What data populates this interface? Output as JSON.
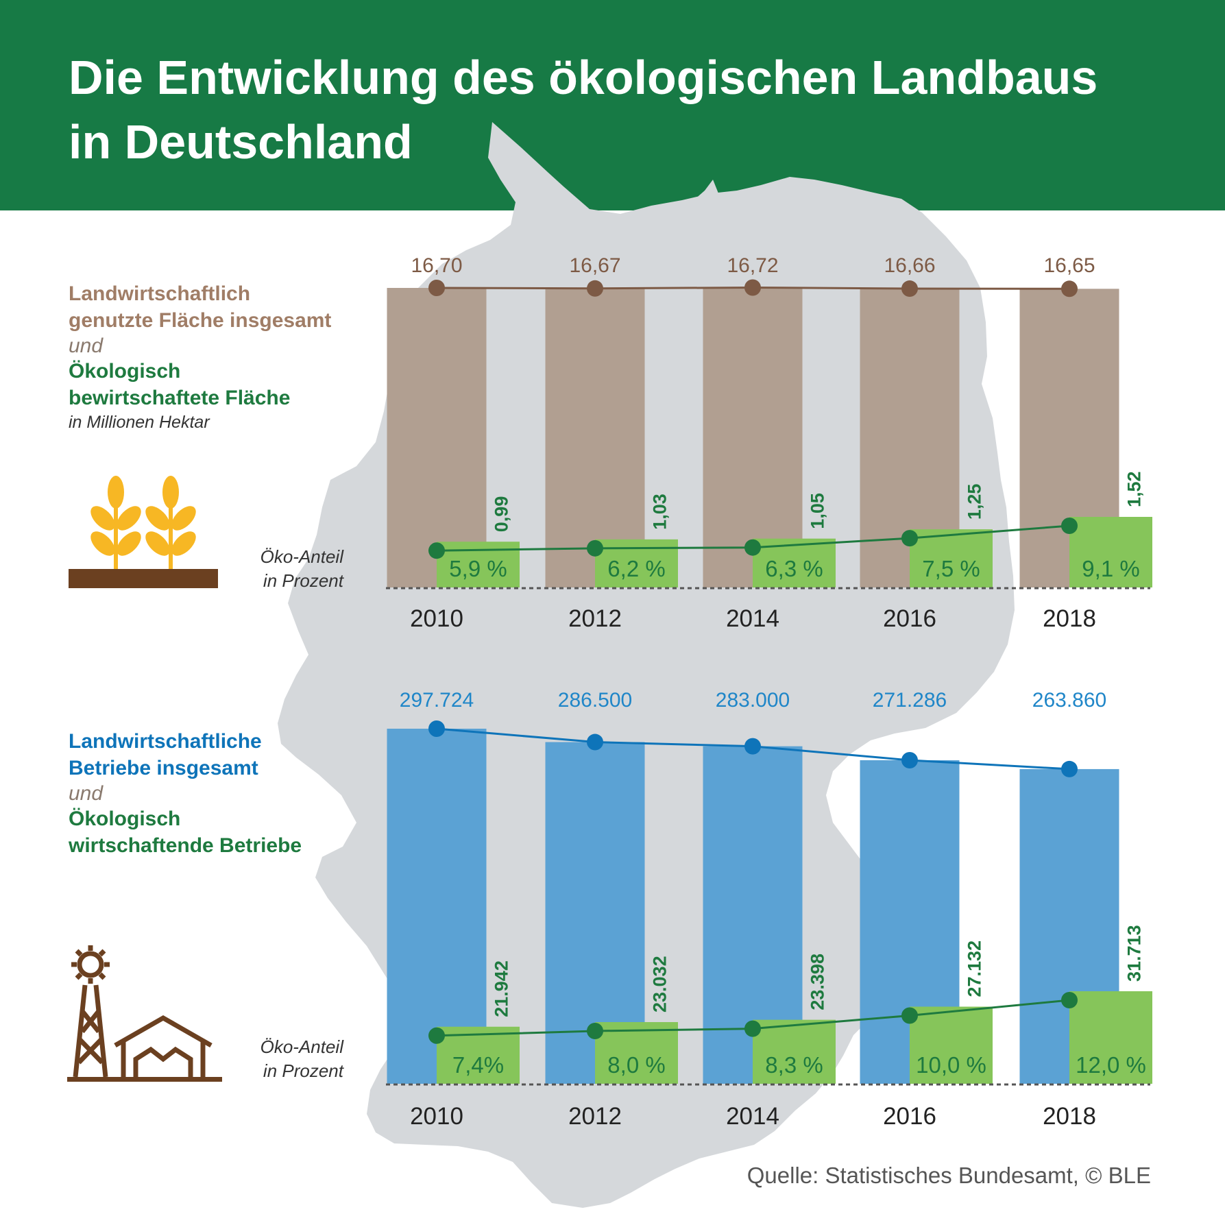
{
  "title": {
    "line1": "Die Entwicklung des ökologischen Landbaus",
    "line2": "in Deutschland"
  },
  "colors": {
    "header_green": "#177A45",
    "brown_bar": "#B19F91",
    "brown_line": "#7D5A45",
    "blue_bar": "#5BA2D4",
    "blue_line": "#0E74B9",
    "eco_green_bar": "#86C55A",
    "eco_green_line": "#1E7A3F",
    "map_gray": "#D5D8DB",
    "wheat": "#F7B724",
    "soil": "#6B4020"
  },
  "section1": {
    "label_line1": "Landwirtschaftlich",
    "label_line2": "genutzte Fläche insgesamt",
    "conjunction": "und",
    "eco_line1": "Ökologisch",
    "eco_line2": "bewirtschaftete Fläche",
    "unit": "in Millionen Hektar",
    "share_label_1": "Öko-Anteil",
    "share_label_2": "in Prozent",
    "icon": "wheat-icon"
  },
  "section2": {
    "label_line1": "Landwirtschaftliche",
    "label_line2": "Betriebe insgesamt",
    "conjunction": "und",
    "eco_line1": "Ökologisch",
    "eco_line2": "wirtschaftende Betriebe",
    "share_label_1": "Öko-Anteil",
    "share_label_2": "in Prozent",
    "icon": "windmill-farm-icon"
  },
  "source": "Quelle: Statistisches Bundesamt, © BLE",
  "chart_data": [
    {
      "type": "bar",
      "categories": [
        "2010",
        "2012",
        "2014",
        "2016",
        "2018"
      ],
      "ylim": [
        0,
        17
      ],
      "series": [
        {
          "name": "Landwirtschaftlich genutzte Fläche insgesamt",
          "values": [
            16.7,
            16.67,
            16.72,
            16.66,
            16.65
          ],
          "labels": [
            "16,70",
            "16,67",
            "16,72",
            "16,66",
            "16,65"
          ]
        },
        {
          "name": "Ökologisch bewirtschaftete Fläche",
          "values": [
            0.99,
            1.03,
            1.05,
            1.25,
            1.52
          ],
          "labels": [
            "0,99",
            "1,03",
            "1,05",
            "1,25",
            "1,52"
          ]
        }
      ],
      "share": {
        "name": "Öko-Anteil in Prozent",
        "values": [
          5.9,
          6.2,
          6.3,
          7.5,
          9.1
        ],
        "labels": [
          "5,9 %",
          "6,2 %",
          "6,3 %",
          "7,5 %",
          "9,1 %"
        ]
      }
    },
    {
      "type": "bar",
      "categories": [
        "2010",
        "2012",
        "2014",
        "2016",
        "2018"
      ],
      "ylim": [
        0,
        330000
      ],
      "series": [
        {
          "name": "Landwirtschaftliche Betriebe insgesamt",
          "values": [
            297724,
            286500,
            283000,
            271286,
            263860
          ],
          "labels": [
            "297.724",
            "286.500",
            "283.000",
            "271.286",
            "263.860"
          ]
        },
        {
          "name": "Ökologisch wirtschaftende Betriebe",
          "values": [
            21942,
            23032,
            23398,
            27132,
            31713
          ],
          "labels": [
            "21.942",
            "23.032",
            "23.398",
            "27.132",
            "31.713"
          ]
        }
      ],
      "share": {
        "name": "Öko-Anteil in Prozent",
        "values": [
          7.4,
          8.0,
          8.3,
          10.0,
          12.0
        ],
        "labels": [
          "7,4%",
          "8,0 %",
          "8,3 %",
          "10,0 %",
          "12,0 %"
        ]
      }
    }
  ]
}
